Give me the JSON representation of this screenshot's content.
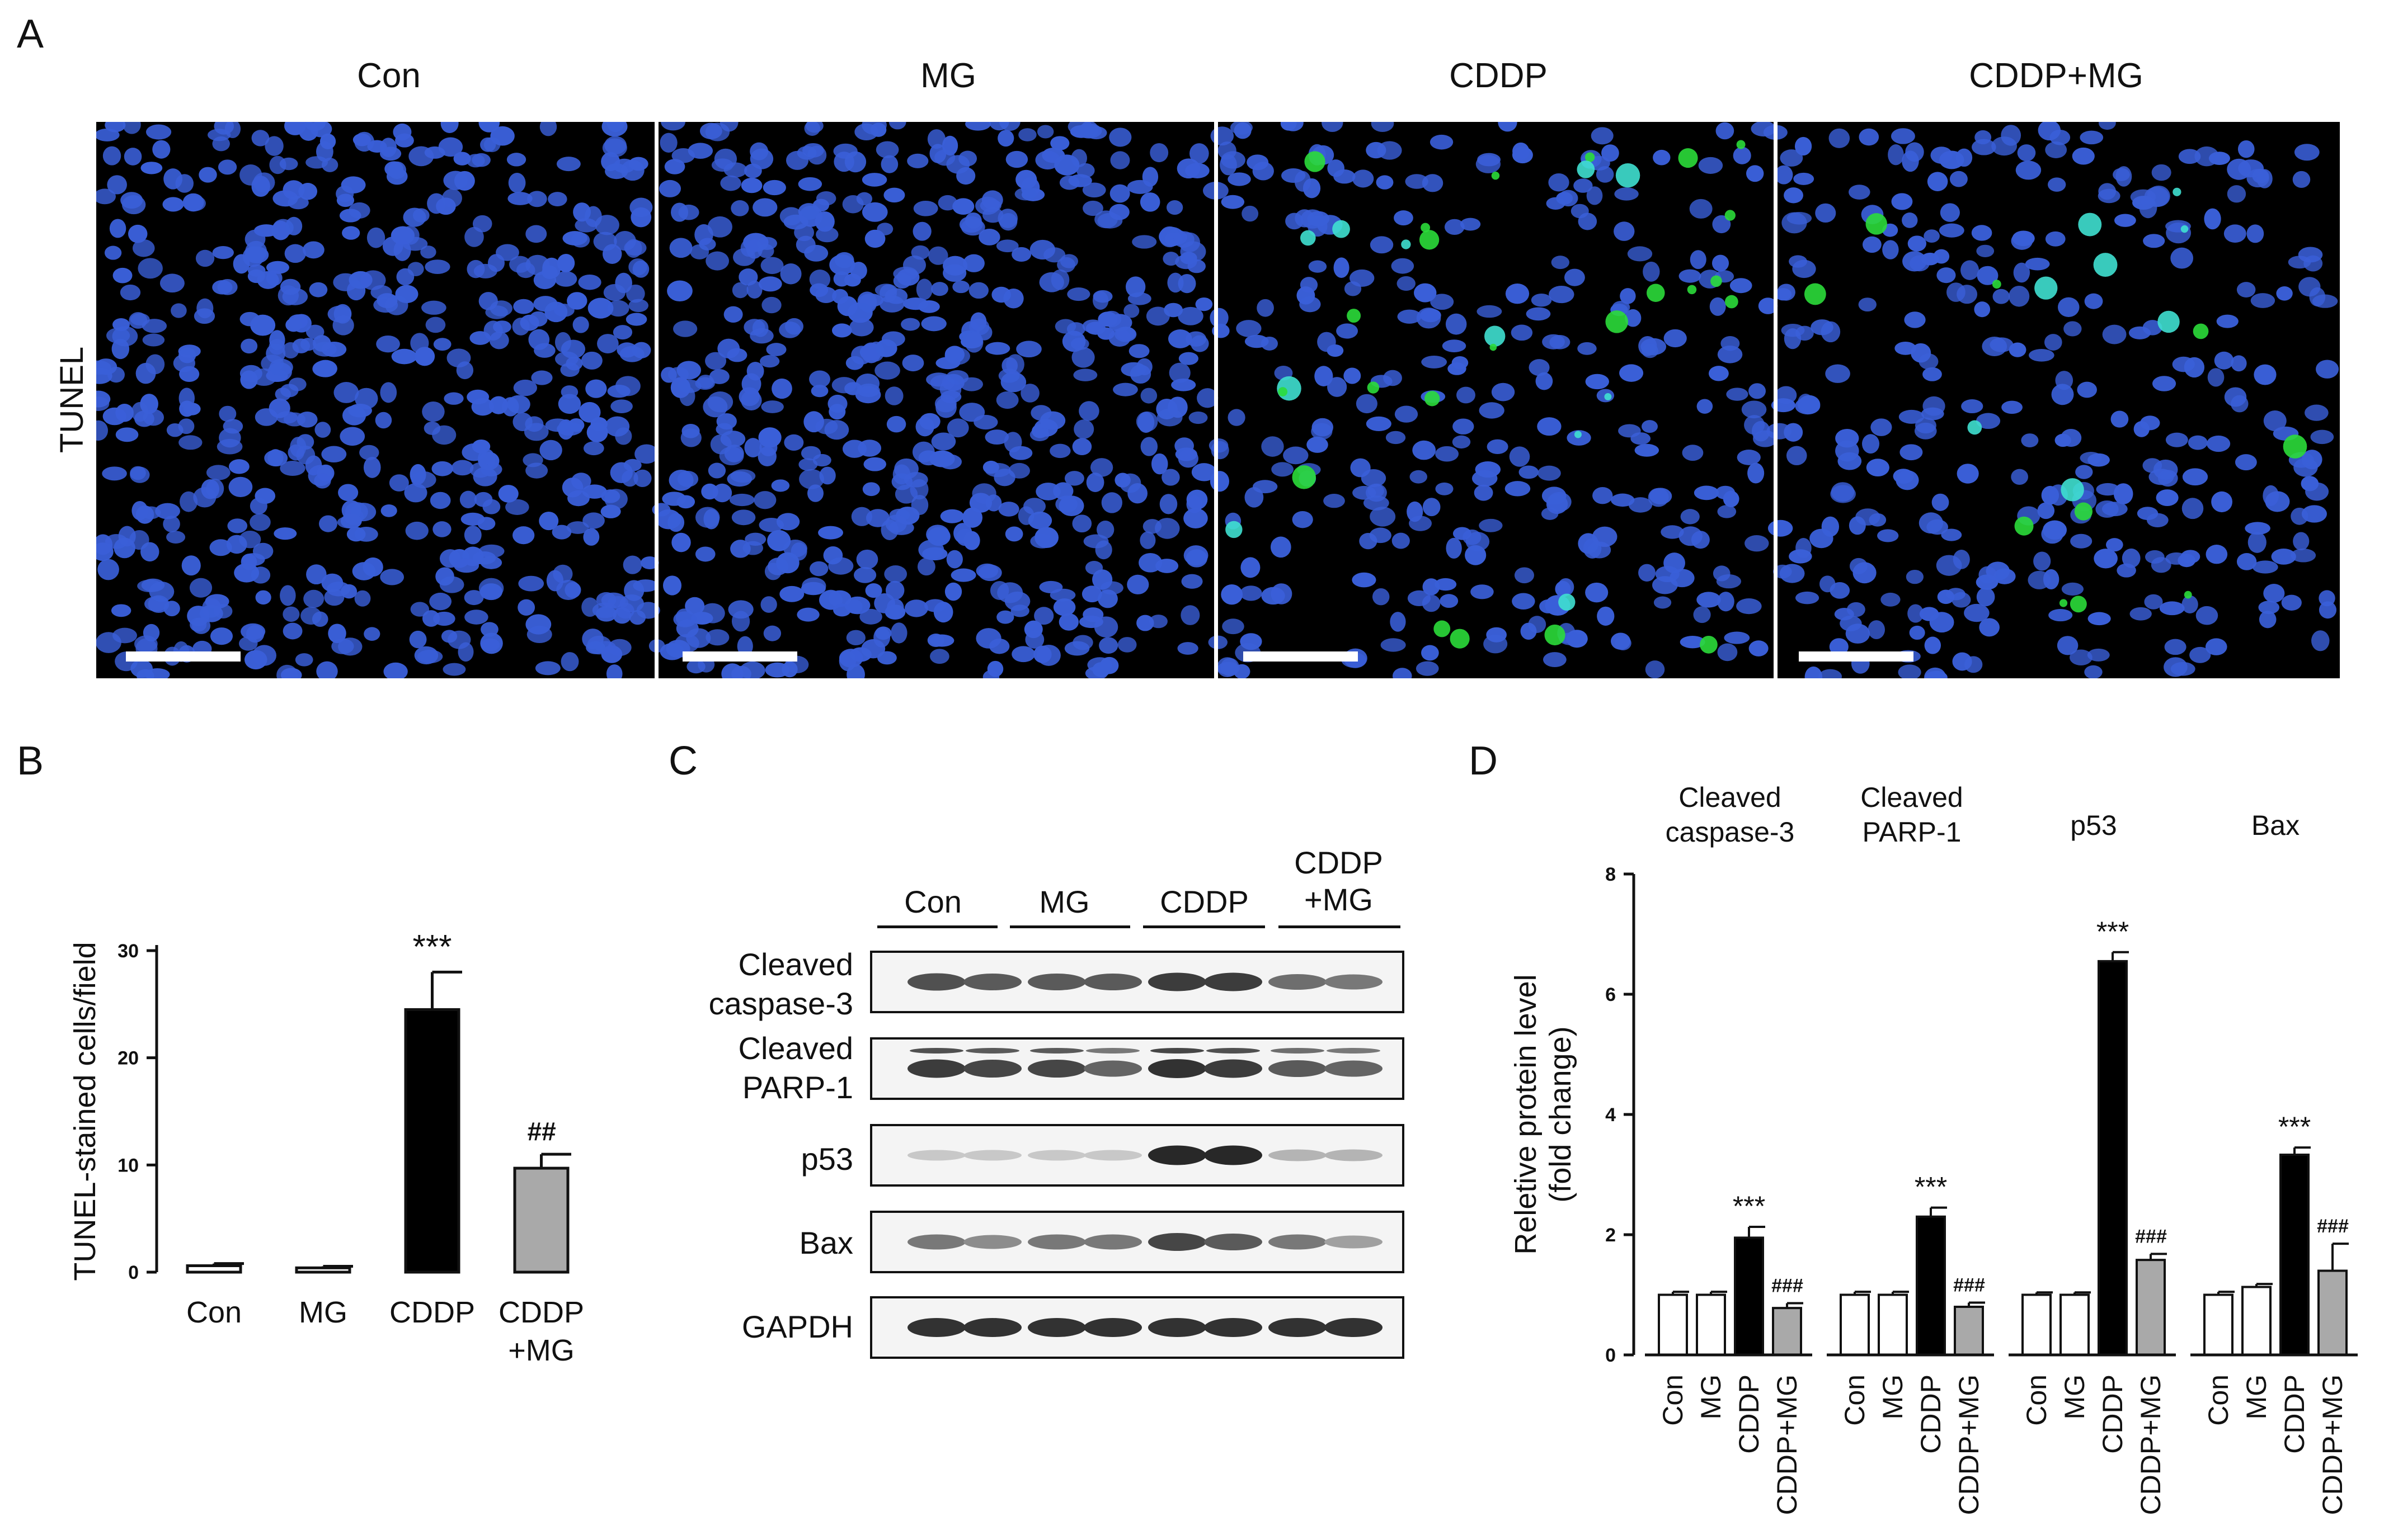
{
  "panel_a": {
    "letter": "A",
    "conditions": [
      "Con",
      "MG",
      "CDDP",
      "CDDP+MG"
    ],
    "row_label": "TUNEL",
    "colors": {
      "nuclei": "#3a5fd8",
      "tunel_positive": "#2bdc3a",
      "background": "#000000"
    }
  },
  "panel_b": {
    "letter": "B",
    "chart_data": {
      "type": "bar",
      "categories": [
        "Con",
        "MG",
        "CDDP",
        "CDDP\n+MG"
      ],
      "values": [
        0.6,
        0.4,
        24.5,
        9.7
      ],
      "errors": [
        0.2,
        0.15,
        3.5,
        1.3
      ],
      "bar_colors": [
        "#ffffff",
        "#ffffff",
        "#000000",
        "#a9a9a9"
      ],
      "ylabel": "TUNEL-stained cells/field",
      "ylim": [
        0,
        30
      ],
      "yticks": [
        0,
        10,
        20,
        30
      ],
      "annotations": [
        "",
        "",
        "***",
        "##"
      ]
    }
  },
  "panel_c": {
    "letter": "C",
    "groups": [
      "Con",
      "MG",
      "CDDP",
      "CDDP\n+MG"
    ],
    "rows": [
      {
        "label": "Cleaved\ncaspase-3"
      },
      {
        "label": "Cleaved\nPARP-1"
      },
      {
        "label": "p53"
      },
      {
        "label": "Bax"
      },
      {
        "label": "GAPDH"
      }
    ]
  },
  "panel_d": {
    "letter": "D",
    "chart_data": {
      "type": "bar",
      "groups": [
        "Cleaved\ncaspase-3",
        "Cleaved\nPARP-1",
        "p53",
        "Bax"
      ],
      "categories": [
        "Con",
        "MG",
        "CDDP",
        "CDDP+MG"
      ],
      "bar_colors": [
        "#ffffff",
        "#ffffff",
        "#000000",
        "#a9a9a9"
      ],
      "series": [
        {
          "values": [
            1.0,
            1.0,
            1.95,
            0.78
          ],
          "errors": [
            0.05,
            0.05,
            0.18,
            0.08
          ],
          "annotations": [
            "",
            "",
            "***",
            "###"
          ]
        },
        {
          "values": [
            1.0,
            1.0,
            2.3,
            0.8
          ],
          "errors": [
            0.05,
            0.05,
            0.15,
            0.07
          ],
          "annotations": [
            "",
            "",
            "***",
            "###"
          ]
        },
        {
          "values": [
            1.0,
            1.0,
            6.55,
            1.58
          ],
          "errors": [
            0.04,
            0.04,
            0.15,
            0.1
          ],
          "annotations": [
            "",
            "",
            "***",
            "###"
          ]
        },
        {
          "values": [
            1.0,
            1.13,
            3.33,
            1.4
          ],
          "errors": [
            0.05,
            0.05,
            0.12,
            0.45
          ],
          "annotations": [
            "",
            "",
            "***",
            "###"
          ]
        }
      ],
      "ylabel": "Reletive protein level\n(fold change)",
      "ylim": [
        0,
        8
      ],
      "yticks": [
        0,
        2,
        4,
        6,
        8
      ]
    }
  }
}
